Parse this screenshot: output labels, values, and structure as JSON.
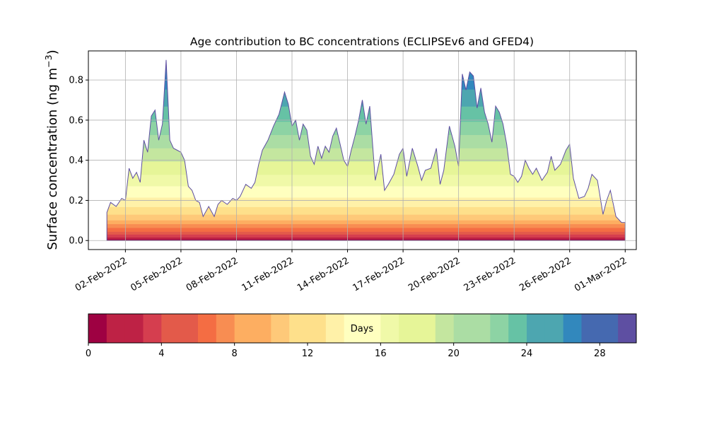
{
  "chart_data": {
    "type": "area",
    "title": "Age contribution to BC concentrations (ECLIPSEv6 and GFED4)",
    "ylabel_main": "Surface concentration (ng m",
    "ylabel_exp": "−3",
    "ylabel_close": ")",
    "ylim": [
      -0.045,
      0.945
    ],
    "yticks": [
      0.0,
      0.2,
      0.4,
      0.6,
      0.8
    ],
    "ytick_labels": [
      "0.0",
      "0.2",
      "0.4",
      "0.6",
      "0.8"
    ],
    "xlim": [
      -1.0,
      28.6
    ],
    "xticks": [
      1,
      4,
      7,
      10,
      13,
      16,
      19,
      22,
      25,
      28
    ],
    "xtick_labels": [
      "02-Feb-2022",
      "05-Feb-2022",
      "08-Feb-2022",
      "11-Feb-2022",
      "14-Feb-2022",
      "17-Feb-2022",
      "20-Feb-2022",
      "23-Feb-2022",
      "26-Feb-2022",
      "01-Mar-2022"
    ],
    "grid": true,
    "total_x": [
      0,
      0.2,
      0.5,
      0.8,
      1.0,
      1.2,
      1.4,
      1.6,
      1.8,
      2.0,
      2.2,
      2.4,
      2.6,
      2.8,
      3.0,
      3.2,
      3.4,
      3.6,
      3.8,
      4.0,
      4.2,
      4.4,
      4.6,
      4.8,
      5.0,
      5.2,
      5.5,
      5.8,
      6.0,
      6.2,
      6.5,
      6.8,
      7.0,
      7.2,
      7.5,
      7.8,
      8.0,
      8.2,
      8.4,
      8.7,
      9.0,
      9.3,
      9.6,
      9.8,
      10.0,
      10.2,
      10.4,
      10.6,
      10.8,
      11.0,
      11.2,
      11.4,
      11.6,
      11.8,
      12.0,
      12.2,
      12.4,
      12.6,
      12.8,
      13.0,
      13.2,
      13.4,
      13.6,
      13.8,
      14.0,
      14.2,
      14.5,
      14.8,
      15.0,
      15.2,
      15.5,
      15.8,
      16.0,
      16.2,
      16.5,
      16.8,
      17.0,
      17.2,
      17.5,
      17.8,
      18.0,
      18.2,
      18.5,
      18.8,
      19.0,
      19.2,
      19.4,
      19.6,
      19.8,
      20.0,
      20.2,
      20.4,
      20.6,
      20.8,
      21.0,
      21.2,
      21.4,
      21.6,
      21.8,
      22.0,
      22.2,
      22.4,
      22.6,
      22.8,
      23.0,
      23.2,
      23.5,
      23.8,
      24.0,
      24.2,
      24.5,
      24.8,
      25.0,
      25.2,
      25.5,
      25.8,
      26.0,
      26.2,
      26.5,
      26.8,
      27.0,
      27.2,
      27.5,
      27.8,
      28.0
    ],
    "total_y": [
      0.14,
      0.19,
      0.17,
      0.21,
      0.2,
      0.36,
      0.31,
      0.34,
      0.29,
      0.5,
      0.44,
      0.62,
      0.65,
      0.5,
      0.58,
      0.9,
      0.5,
      0.46,
      0.45,
      0.44,
      0.4,
      0.27,
      0.25,
      0.2,
      0.19,
      0.12,
      0.17,
      0.12,
      0.18,
      0.2,
      0.18,
      0.21,
      0.2,
      0.22,
      0.28,
      0.26,
      0.29,
      0.38,
      0.45,
      0.5,
      0.57,
      0.63,
      0.74,
      0.68,
      0.57,
      0.6,
      0.5,
      0.58,
      0.55,
      0.42,
      0.38,
      0.47,
      0.41,
      0.47,
      0.44,
      0.52,
      0.56,
      0.48,
      0.4,
      0.37,
      0.45,
      0.52,
      0.6,
      0.7,
      0.58,
      0.67,
      0.3,
      0.43,
      0.25,
      0.28,
      0.33,
      0.43,
      0.46,
      0.32,
      0.46,
      0.37,
      0.3,
      0.35,
      0.36,
      0.46,
      0.28,
      0.35,
      0.57,
      0.47,
      0.37,
      0.83,
      0.75,
      0.84,
      0.82,
      0.66,
      0.76,
      0.64,
      0.58,
      0.49,
      0.67,
      0.64,
      0.58,
      0.48,
      0.33,
      0.32,
      0.29,
      0.32,
      0.4,
      0.36,
      0.33,
      0.36,
      0.3,
      0.34,
      0.42,
      0.35,
      0.38,
      0.45,
      0.48,
      0.31,
      0.21,
      0.22,
      0.26,
      0.33,
      0.3,
      0.13,
      0.2,
      0.25,
      0.12,
      0.09,
      0.09
    ],
    "colorbar": {
      "label": "Days",
      "range": [
        0,
        30
      ],
      "ticks": [
        0,
        4,
        8,
        12,
        16,
        20,
        24,
        28
      ],
      "tick_labels": [
        "0",
        "4",
        "8",
        "12",
        "16",
        "20",
        "24",
        "28"
      ],
      "colors": [
        "#9e0142",
        "#be2245",
        "#d53e4f",
        "#e35a4a",
        "#f46d43",
        "#f88d52",
        "#fdae61",
        "#fec979",
        "#fee08b",
        "#fff1a8",
        "#ffffbf",
        "#f0f9a8",
        "#e6f598",
        "#c4e69f",
        "#abdda4",
        "#8dd3a4",
        "#66c2a5",
        "#4da6b0",
        "#3288bd",
        "#4569b0",
        "#5e4fa2"
      ]
    },
    "colormap": "Spectral",
    "age_bins": 30
  }
}
